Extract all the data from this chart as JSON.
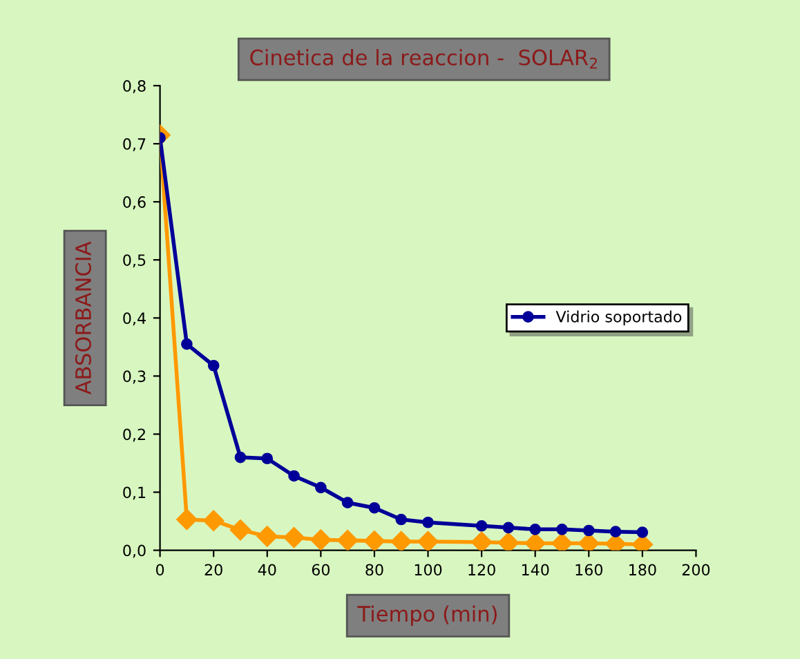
{
  "chart_data": {
    "type": "line",
    "title": "Cinetica de la reaccion -  SOLAR$_{2}$",
    "xlabel": "Tiempo (min)",
    "ylabel": "ABSORBANCIA",
    "x": [
      0,
      10,
      20,
      30,
      40,
      50,
      60,
      70,
      80,
      90,
      100,
      120,
      130,
      140,
      150,
      160,
      170,
      180
    ],
    "series": [
      {
        "name": "Vidrio soportado",
        "color": "#000099",
        "marker": "circle",
        "values": [
          0.71,
          0.355,
          0.318,
          0.16,
          0.158,
          0.128,
          0.108,
          0.082,
          0.073,
          0.053,
          0.048,
          0.042,
          0.039,
          0.036,
          0.036,
          0.034,
          0.032,
          0.031
        ]
      },
      {
        "color": "#ff9900",
        "marker": "diamond",
        "values": [
          0.715,
          0.053,
          0.051,
          0.035,
          0.024,
          0.022,
          0.018,
          0.017,
          0.016,
          0.015,
          0.015,
          0.014,
          0.013,
          0.012,
          0.012,
          0.012,
          0.011,
          0.01
        ]
      }
    ],
    "xlim": [
      0,
      200
    ],
    "xticks": [
      0,
      20,
      40,
      60,
      80,
      100,
      120,
      140,
      160,
      180,
      200
    ],
    "ylim": [
      0,
      0.8
    ],
    "yticks": [
      {
        "value": 0,
        "label": "0,0"
      },
      {
        "value": 0.1,
        "label": "0,1"
      },
      {
        "value": 0.2,
        "label": "0,2"
      },
      {
        "value": 0.3,
        "label": "0,3"
      },
      {
        "value": 0.4,
        "label": "0,4"
      },
      {
        "value": 0.5,
        "label": "0,5"
      },
      {
        "value": 0.6,
        "label": "0,6"
      },
      {
        "value": 0.7,
        "label": "0,7"
      },
      {
        "value": 0.8,
        "label": "0,8"
      }
    ],
    "grid": false,
    "legend": "right",
    "line_style": "solid"
  }
}
